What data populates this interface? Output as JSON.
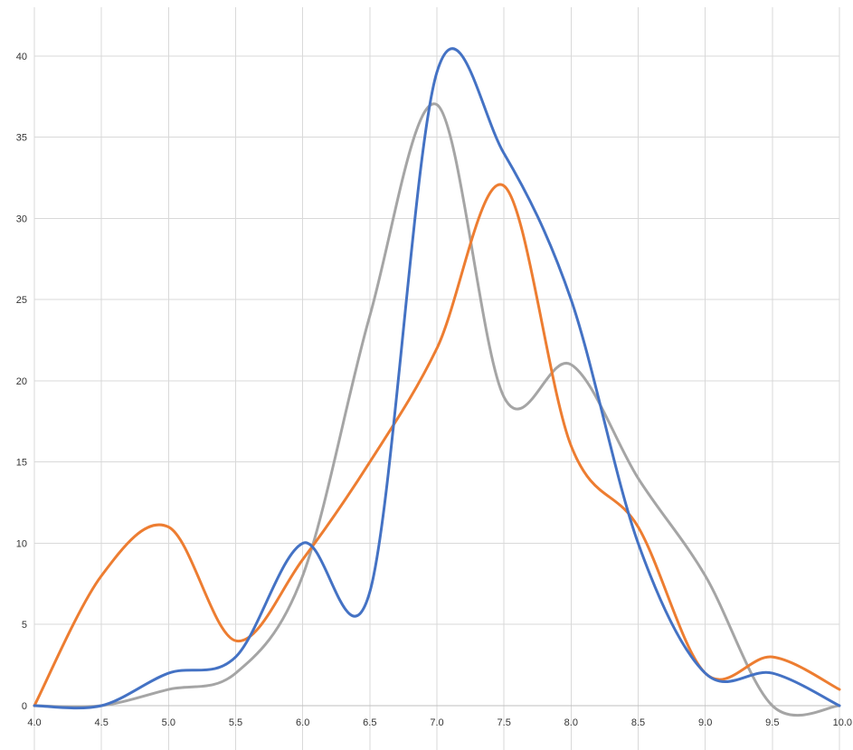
{
  "chart_data": {
    "type": "line",
    "smooth": true,
    "title": "",
    "xlabel": "",
    "ylabel": "",
    "xlim": [
      4.0,
      10.0
    ],
    "ylim": [
      0,
      43
    ],
    "grid": true,
    "legend": "none",
    "x_ticks": [
      "4.0",
      "4.5",
      "5.0",
      "5.5",
      "6.0",
      "6.5",
      "7.0",
      "7.5",
      "8.0",
      "8.5",
      "9.0",
      "9.5",
      "10.0"
    ],
    "y_ticks": [
      "0",
      "5",
      "10",
      "15",
      "20",
      "25",
      "30",
      "35",
      "40"
    ],
    "x": [
      4.0,
      4.5,
      5.0,
      5.5,
      6.0,
      6.5,
      7.0,
      7.5,
      8.0,
      8.5,
      9.0,
      9.5,
      10.0
    ],
    "series": [
      {
        "color": "#4472c4",
        "values": [
          0,
          0,
          2,
          3,
          10,
          7,
          39,
          34,
          25,
          10,
          2,
          2,
          0
        ]
      },
      {
        "color": "#ed7d31",
        "values": [
          0,
          8,
          11,
          4,
          9,
          15,
          22,
          32,
          16,
          11,
          2,
          3,
          1
        ]
      },
      {
        "color": "#a5a5a5",
        "values": [
          0,
          0,
          1,
          2,
          8,
          24,
          37,
          19,
          21,
          14,
          8,
          0,
          0
        ]
      }
    ]
  }
}
